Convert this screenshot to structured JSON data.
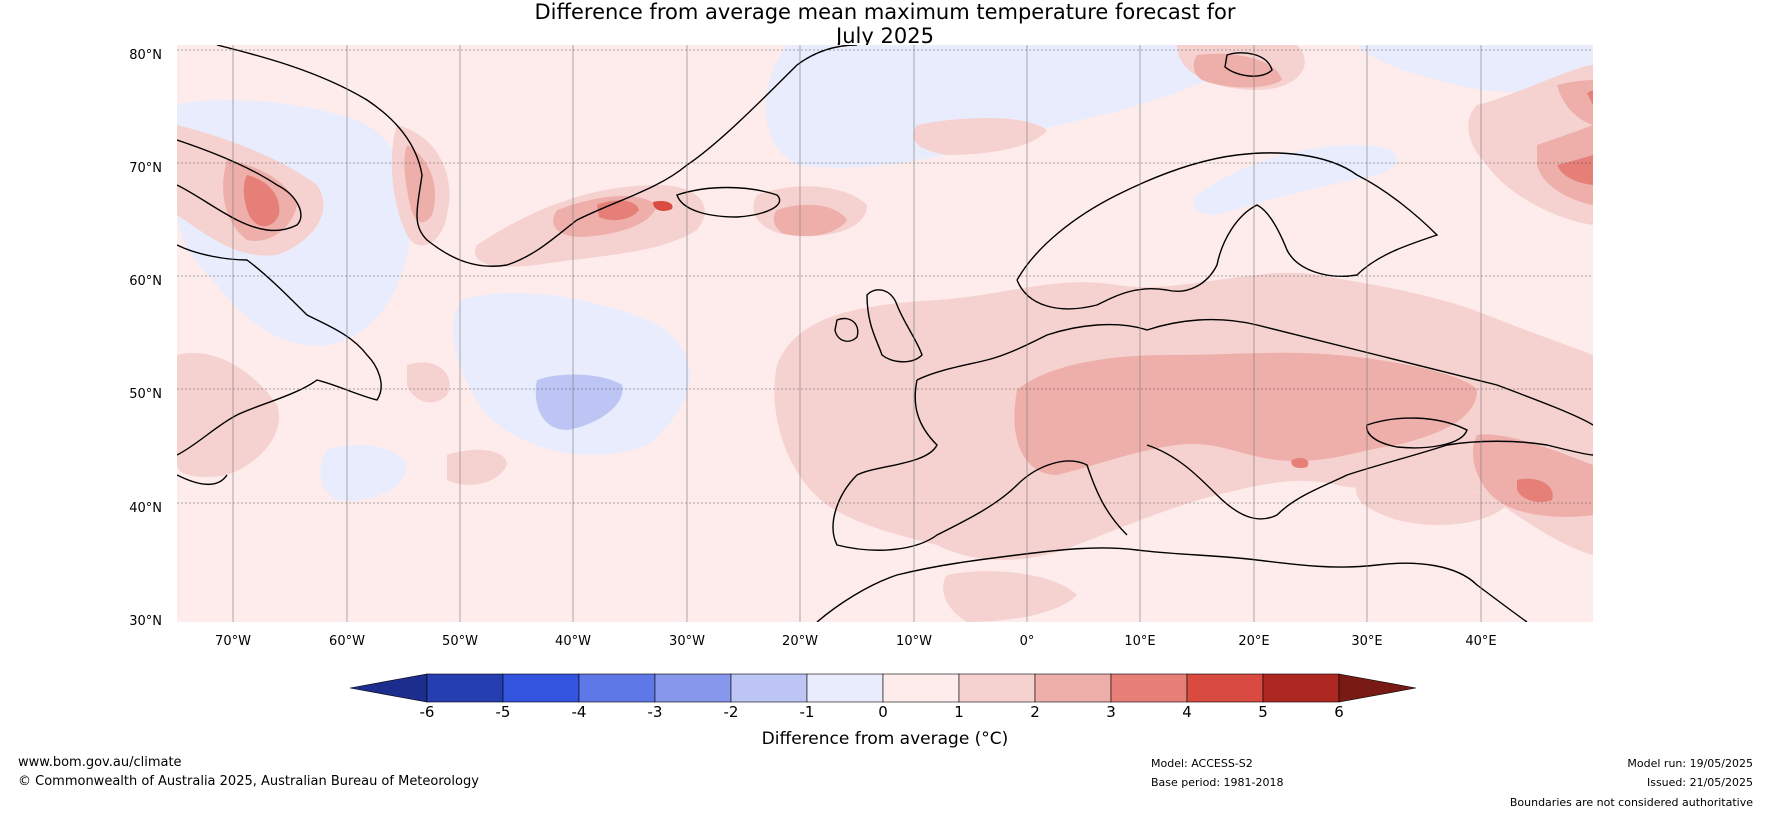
{
  "title": {
    "line1": "Difference from average mean maximum temperature forecast for",
    "line2": "July 2025"
  },
  "map": {
    "lat_labels": [
      "80°N",
      "70°N",
      "60°N",
      "50°N",
      "40°N",
      "30°N"
    ],
    "lon_labels": [
      "70°W",
      "60°W",
      "50°W",
      "40°W",
      "30°W",
      "20°W",
      "10°W",
      "0°",
      "10°E",
      "20°E",
      "30°E",
      "40°E"
    ],
    "extent": {
      "lon": [
        -75,
        50
      ],
      "lat": [
        30,
        80
      ]
    }
  },
  "colorbar": {
    "label": "Difference from average (°C)",
    "ticks": [
      "-6",
      "-5",
      "-4",
      "-3",
      "-2",
      "-1",
      "0",
      "1",
      "2",
      "3",
      "4",
      "5",
      "6"
    ],
    "colors": [
      "#1b2e8e",
      "#253fb0",
      "#3355e0",
      "#5f78e8",
      "#8797ec",
      "#bcc5f4",
      "#e9ecfc",
      "#fdeceb",
      "#f5d2cf",
      "#eeaeaa",
      "#e57f78",
      "#d94b40",
      "#ad2820",
      "#7a1a14"
    ]
  },
  "footer": {
    "website": "www.bom.gov.au/climate",
    "copyright": "© Commonwealth of Australia 2025, Australian Bureau of Meteorology",
    "model": "Model: ACCESS-S2",
    "base_period": "Base period: 1981-2018",
    "model_run": "Model run: 19/05/2025",
    "issued": "Issued: 21/05/2025",
    "disclaimer": "Boundaries are not considered authoritative"
  }
}
